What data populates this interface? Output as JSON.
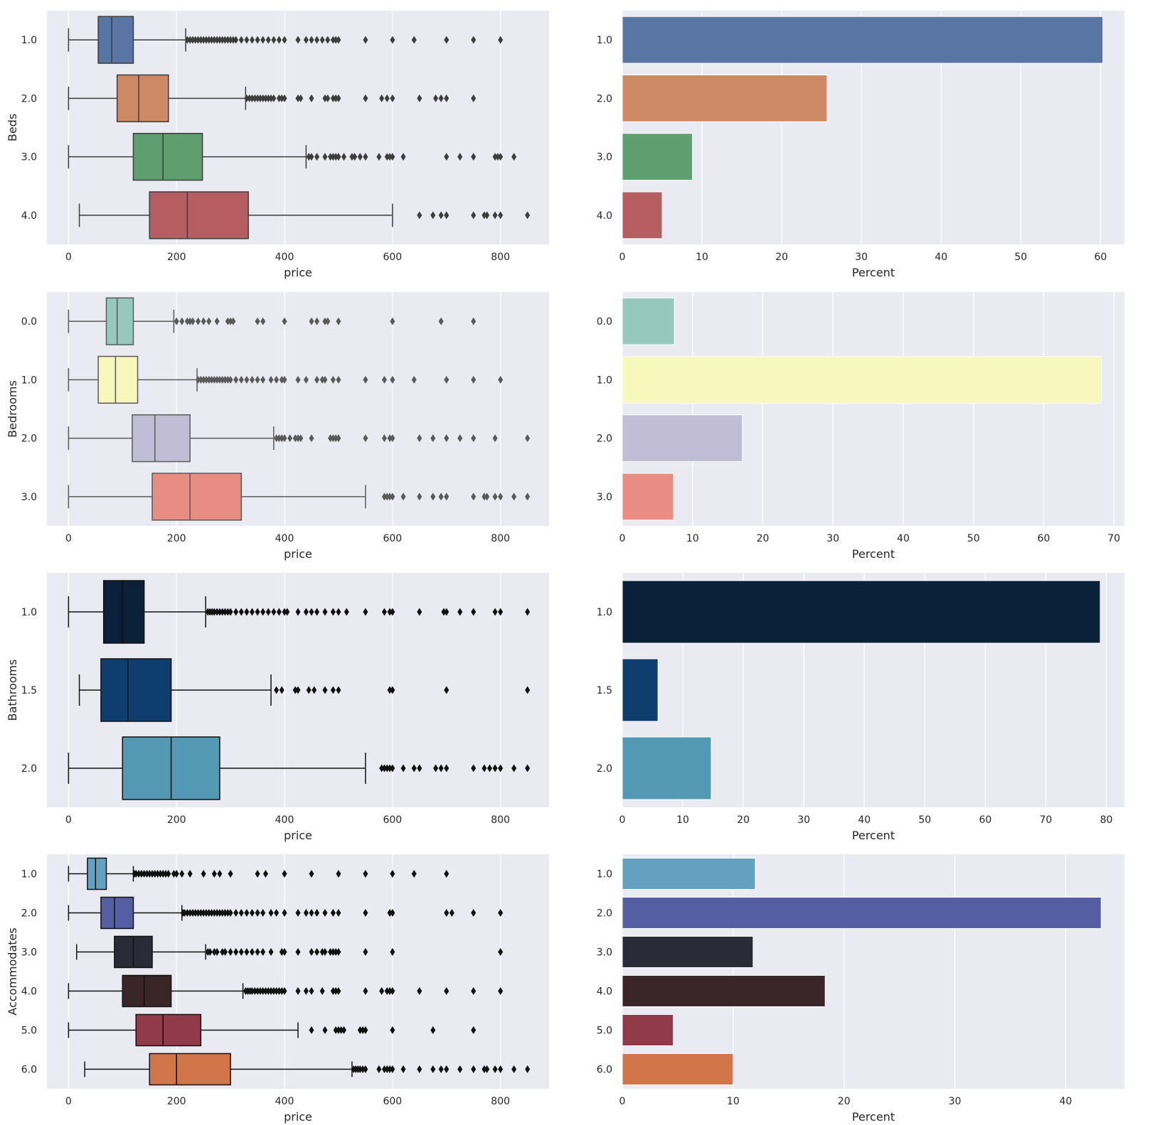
{
  "chart_data": [
    {
      "type": "boxplot",
      "orientation": "horizontal",
      "xlabel": "price",
      "ylabel": "Beds",
      "xlim": [
        -40,
        890
      ],
      "xticks": [
        0,
        200,
        400,
        600,
        800
      ],
      "grid": true,
      "categories": [
        "1.0",
        "2.0",
        "3.0",
        "4.0"
      ],
      "colors": [
        "#5975a4",
        "#cc8963",
        "#5f9e6e",
        "#b55d60"
      ],
      "edge_color": "#3d3d3d",
      "flier_color": "#3d3d3d",
      "boxes": [
        {
          "label": "1.0",
          "whisker_low": 0,
          "q1": 55,
          "median": 80,
          "q3": 120,
          "whisker_high": 217,
          "outliers": [
            220,
            225,
            230,
            235,
            240,
            245,
            250,
            255,
            260,
            265,
            270,
            275,
            280,
            285,
            290,
            295,
            300,
            305,
            310,
            320,
            330,
            340,
            350,
            360,
            370,
            380,
            390,
            400,
            425,
            440,
            450,
            460,
            470,
            480,
            490,
            495,
            500,
            550,
            600,
            640,
            700,
            750,
            800
          ]
        },
        {
          "label": "2.0",
          "whisker_low": 0,
          "q1": 90,
          "median": 130,
          "q3": 185,
          "whisker_high": 328,
          "outliers": [
            330,
            335,
            340,
            345,
            350,
            355,
            360,
            365,
            370,
            375,
            380,
            390,
            395,
            400,
            425,
            430,
            450,
            475,
            480,
            490,
            495,
            500,
            550,
            580,
            590,
            600,
            650,
            680,
            690,
            700,
            750
          ]
        },
        {
          "label": "3.0",
          "whisker_low": 0,
          "q1": 120,
          "median": 175,
          "q3": 248,
          "whisker_high": 440,
          "outliers": [
            445,
            450,
            460,
            475,
            485,
            490,
            495,
            500,
            510,
            525,
            530,
            540,
            550,
            575,
            590,
            595,
            600,
            620,
            700,
            725,
            750,
            790,
            795,
            800,
            825
          ]
        },
        {
          "label": "4.0",
          "whisker_low": 20,
          "q1": 150,
          "median": 220,
          "q3": 333,
          "whisker_high": 600,
          "outliers": [
            650,
            675,
            690,
            700,
            750,
            770,
            775,
            790,
            800,
            850
          ]
        }
      ]
    },
    {
      "type": "bar",
      "orientation": "horizontal",
      "xlabel": "Percent",
      "ylabel": "",
      "xlim": [
        0,
        63
      ],
      "xticks": [
        0,
        10,
        20,
        30,
        40,
        50,
        60
      ],
      "grid": true,
      "categories": [
        "1.0",
        "2.0",
        "3.0",
        "4.0"
      ],
      "values": [
        60.3,
        25.7,
        8.8,
        5.0
      ],
      "colors": [
        "#5975a4",
        "#cc8963",
        "#5f9e6e",
        "#b55d60"
      ]
    },
    {
      "type": "boxplot",
      "orientation": "horizontal",
      "xlabel": "price",
      "ylabel": "Bedrooms",
      "xlim": [
        -40,
        890
      ],
      "xticks": [
        0,
        200,
        400,
        600,
        800
      ],
      "grid": true,
      "categories": [
        "0.0",
        "1.0",
        "2.0",
        "3.0"
      ],
      "colors": [
        "#97c8bf",
        "#f7f6bb",
        "#c1bdd6",
        "#e98d84"
      ],
      "edge_color": "#5a5a5a",
      "flier_color": "#5a5a5a",
      "boxes": [
        {
          "label": "0.0",
          "whisker_low": 0,
          "q1": 70,
          "median": 90,
          "q3": 120,
          "whisker_high": 195,
          "outliers": [
            200,
            210,
            220,
            225,
            230,
            240,
            250,
            260,
            275,
            295,
            300,
            305,
            350,
            360,
            400,
            450,
            460,
            475,
            480,
            500,
            600,
            690,
            750
          ]
        },
        {
          "label": "1.0",
          "whisker_low": 0,
          "q1": 55,
          "median": 87,
          "q3": 128,
          "whisker_high": 238,
          "outliers": [
            240,
            245,
            250,
            255,
            260,
            265,
            270,
            275,
            280,
            285,
            290,
            295,
            300,
            310,
            320,
            330,
            340,
            350,
            360,
            375,
            385,
            395,
            400,
            425,
            440,
            460,
            470,
            475,
            490,
            500,
            550,
            585,
            600,
            640,
            700,
            750,
            800
          ]
        },
        {
          "label": "2.0",
          "whisker_low": 0,
          "q1": 118,
          "median": 160,
          "q3": 225,
          "whisker_high": 380,
          "outliers": [
            385,
            390,
            395,
            400,
            410,
            420,
            425,
            430,
            450,
            485,
            490,
            495,
            500,
            550,
            585,
            595,
            600,
            650,
            675,
            700,
            725,
            750,
            790,
            850
          ]
        },
        {
          "label": "3.0",
          "whisker_low": 0,
          "q1": 155,
          "median": 225,
          "q3": 320,
          "whisker_high": 550,
          "outliers": [
            585,
            590,
            595,
            600,
            620,
            650,
            675,
            690,
            700,
            750,
            770,
            775,
            790,
            800,
            825,
            850
          ]
        }
      ]
    },
    {
      "type": "bar",
      "orientation": "horizontal",
      "xlabel": "Percent",
      "ylabel": "",
      "xlim": [
        0,
        71.5
      ],
      "xticks": [
        0,
        10,
        20,
        30,
        40,
        50,
        60,
        70
      ],
      "grid": true,
      "categories": [
        "0.0",
        "1.0",
        "2.0",
        "3.0"
      ],
      "values": [
        7.4,
        68.2,
        17.1,
        7.3
      ],
      "colors": [
        "#97c8bf",
        "#f7f6bb",
        "#c1bdd6",
        "#e98d84"
      ]
    },
    {
      "type": "boxplot",
      "orientation": "horizontal",
      "xlabel": "price",
      "ylabel": "Bathrooms",
      "xlim": [
        -40,
        890
      ],
      "xticks": [
        0,
        200,
        400,
        600,
        800
      ],
      "grid": true,
      "categories": [
        "1.0",
        "1.5",
        "2.0"
      ],
      "colors": [
        "#0b2039",
        "#0f3d6e",
        "#5399b3"
      ],
      "edge_color": "#111111",
      "flier_color": "#111111",
      "boxes": [
        {
          "label": "1.0",
          "whisker_low": 0,
          "q1": 65,
          "median": 100,
          "q3": 140,
          "whisker_high": 254,
          "outliers": [
            258,
            262,
            266,
            270,
            275,
            280,
            285,
            290,
            295,
            300,
            310,
            320,
            330,
            340,
            350,
            360,
            370,
            380,
            390,
            400,
            405,
            425,
            440,
            450,
            460,
            475,
            490,
            500,
            515,
            550,
            585,
            595,
            600,
            650,
            695,
            700,
            725,
            750,
            790,
            800,
            850
          ]
        },
        {
          "label": "1.5",
          "whisker_low": 20,
          "q1": 60,
          "median": 110,
          "q3": 190,
          "whisker_high": 375,
          "outliers": [
            385,
            395,
            420,
            425,
            445,
            455,
            475,
            490,
            500,
            595,
            600,
            700,
            850
          ]
        },
        {
          "label": "2.0",
          "whisker_low": 0,
          "q1": 100,
          "median": 190,
          "q3": 280,
          "whisker_high": 550,
          "outliers": [
            580,
            585,
            590,
            595,
            600,
            620,
            640,
            650,
            680,
            690,
            700,
            750,
            770,
            780,
            790,
            800,
            825,
            850
          ]
        }
      ]
    },
    {
      "type": "bar",
      "orientation": "horizontal",
      "xlabel": "Percent",
      "ylabel": "",
      "xlim": [
        0,
        83
      ],
      "xticks": [
        0,
        10,
        20,
        30,
        40,
        50,
        60,
        70,
        80
      ],
      "grid": true,
      "categories": [
        "1.0",
        "1.5",
        "2.0"
      ],
      "values": [
        79.0,
        5.9,
        14.7
      ],
      "colors": [
        "#0b2039",
        "#0f3d6e",
        "#5399b3"
      ]
    },
    {
      "type": "boxplot",
      "orientation": "horizontal",
      "xlabel": "price",
      "ylabel": "Accommodates",
      "xlim": [
        -40,
        890
      ],
      "xticks": [
        0,
        200,
        400,
        600,
        800
      ],
      "grid": true,
      "categories": [
        "1.0",
        "2.0",
        "3.0",
        "4.0",
        "5.0",
        "6.0"
      ],
      "colors": [
        "#64a1c1",
        "#535ea3",
        "#2b2b38",
        "#3a2528",
        "#913b4a",
        "#d3754a"
      ],
      "edge_color": "#111111",
      "flier_color": "#111111",
      "boxes": [
        {
          "label": "1.0",
          "whisker_low": 0,
          "q1": 35,
          "median": 50,
          "q3": 70,
          "whisker_high": 120,
          "outliers": [
            122,
            125,
            130,
            135,
            140,
            145,
            150,
            155,
            160,
            165,
            170,
            175,
            180,
            185,
            195,
            200,
            210,
            225,
            250,
            270,
            280,
            300,
            350,
            365,
            400,
            450,
            500,
            550,
            600,
            640,
            700
          ]
        },
        {
          "label": "2.0",
          "whisker_low": 0,
          "q1": 60,
          "median": 85,
          "q3": 120,
          "whisker_high": 210,
          "outliers": [
            212,
            215,
            220,
            225,
            230,
            235,
            240,
            245,
            250,
            255,
            260,
            265,
            270,
            275,
            280,
            285,
            290,
            295,
            300,
            310,
            320,
            330,
            340,
            350,
            360,
            375,
            385,
            400,
            425,
            440,
            450,
            460,
            475,
            490,
            500,
            550,
            595,
            600,
            700,
            710,
            750,
            800
          ]
        },
        {
          "label": "3.0",
          "whisker_low": 15,
          "q1": 85,
          "median": 120,
          "q3": 155,
          "whisker_high": 254,
          "outliers": [
            258,
            262,
            270,
            275,
            285,
            290,
            300,
            310,
            320,
            330,
            340,
            350,
            360,
            375,
            395,
            400,
            425,
            450,
            460,
            470,
            475,
            485,
            490,
            495,
            500,
            550,
            600,
            800
          ]
        },
        {
          "label": "4.0",
          "whisker_low": 0,
          "q1": 100,
          "median": 140,
          "q3": 190,
          "whisker_high": 323,
          "outliers": [
            328,
            332,
            336,
            340,
            345,
            350,
            355,
            360,
            365,
            370,
            375,
            380,
            385,
            390,
            395,
            400,
            425,
            440,
            450,
            470,
            490,
            495,
            500,
            550,
            580,
            590,
            595,
            600,
            650,
            700,
            750,
            800
          ]
        },
        {
          "label": "5.0",
          "whisker_low": 0,
          "q1": 125,
          "median": 175,
          "q3": 245,
          "whisker_high": 425,
          "outliers": [
            450,
            475,
            495,
            500,
            505,
            510,
            540,
            545,
            550,
            600,
            675,
            750
          ]
        },
        {
          "label": "6.0",
          "whisker_low": 30,
          "q1": 150,
          "median": 200,
          "q3": 300,
          "whisker_high": 525,
          "outliers": [
            528,
            532,
            536,
            540,
            545,
            550,
            575,
            585,
            590,
            595,
            600,
            620,
            650,
            675,
            690,
            700,
            725,
            750,
            770,
            775,
            790,
            800,
            825,
            850
          ]
        }
      ]
    },
    {
      "type": "bar",
      "orientation": "horizontal",
      "xlabel": "Percent",
      "ylabel": "",
      "xlim": [
        0,
        45.3
      ],
      "xticks": [
        0,
        10,
        20,
        30,
        40
      ],
      "grid": true,
      "categories": [
        "1.0",
        "2.0",
        "3.0",
        "4.0",
        "5.0",
        "6.0"
      ],
      "values": [
        12.0,
        43.2,
        11.8,
        18.3,
        4.6,
        10.0
      ],
      "colors": [
        "#64a1c1",
        "#535ea3",
        "#2b2b38",
        "#3a2528",
        "#913b4a",
        "#d3754a"
      ]
    }
  ]
}
